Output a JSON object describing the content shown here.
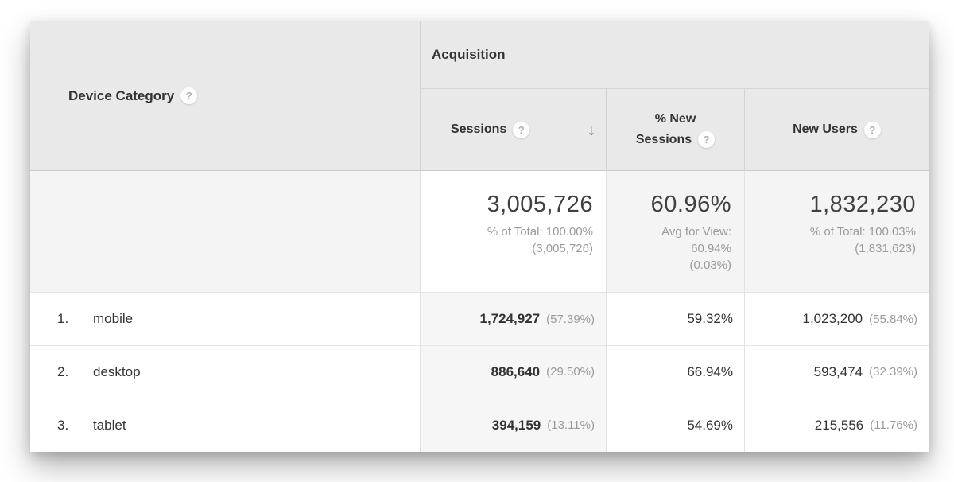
{
  "table": {
    "dimension_header": {
      "label": "Device Category"
    },
    "group_header": {
      "label": "Acquisition"
    },
    "columns": [
      {
        "label": "Sessions",
        "sorted": "descending"
      },
      {
        "label": "% New Sessions"
      },
      {
        "label": "New Users"
      }
    ],
    "icons": {
      "help": "?",
      "sort_desc": "↓"
    },
    "totals": {
      "sessions": {
        "value": "3,005,726",
        "line1": "% of Total: 100.00%",
        "line2": "(3,005,726)"
      },
      "new_sessions": {
        "value": "60.96%",
        "line1": "Avg for View:",
        "line2": "60.94%",
        "line3": "(0.03%)"
      },
      "new_users": {
        "value": "1,832,230",
        "line1": "% of Total: 100.03%",
        "line2": "(1,831,623)"
      }
    },
    "rows": [
      {
        "rank": "1.",
        "name": "mobile",
        "sessions": "1,724,927",
        "sessions_pct": "(57.39%)",
        "new_sessions": "59.32%",
        "new_users": "1,023,200",
        "new_users_pct": "(55.84%)"
      },
      {
        "rank": "2.",
        "name": "desktop",
        "sessions": "886,640",
        "sessions_pct": "(29.50%)",
        "new_sessions": "66.94%",
        "new_users": "593,474",
        "new_users_pct": "(32.39%)"
      },
      {
        "rank": "3.",
        "name": "tablet",
        "sessions": "394,159",
        "sessions_pct": "(13.11%)",
        "new_sessions": "54.69%",
        "new_users": "215,556",
        "new_users_pct": "(11.76%)"
      }
    ],
    "colors": {
      "header_bg": "#e9e9e9",
      "sorted_column_bg": "#f6f6f6",
      "totals_bg": "#f4f4f4",
      "border": "#d3d3d3",
      "text_primary": "#333333",
      "text_secondary": "#9b9b9b"
    }
  }
}
